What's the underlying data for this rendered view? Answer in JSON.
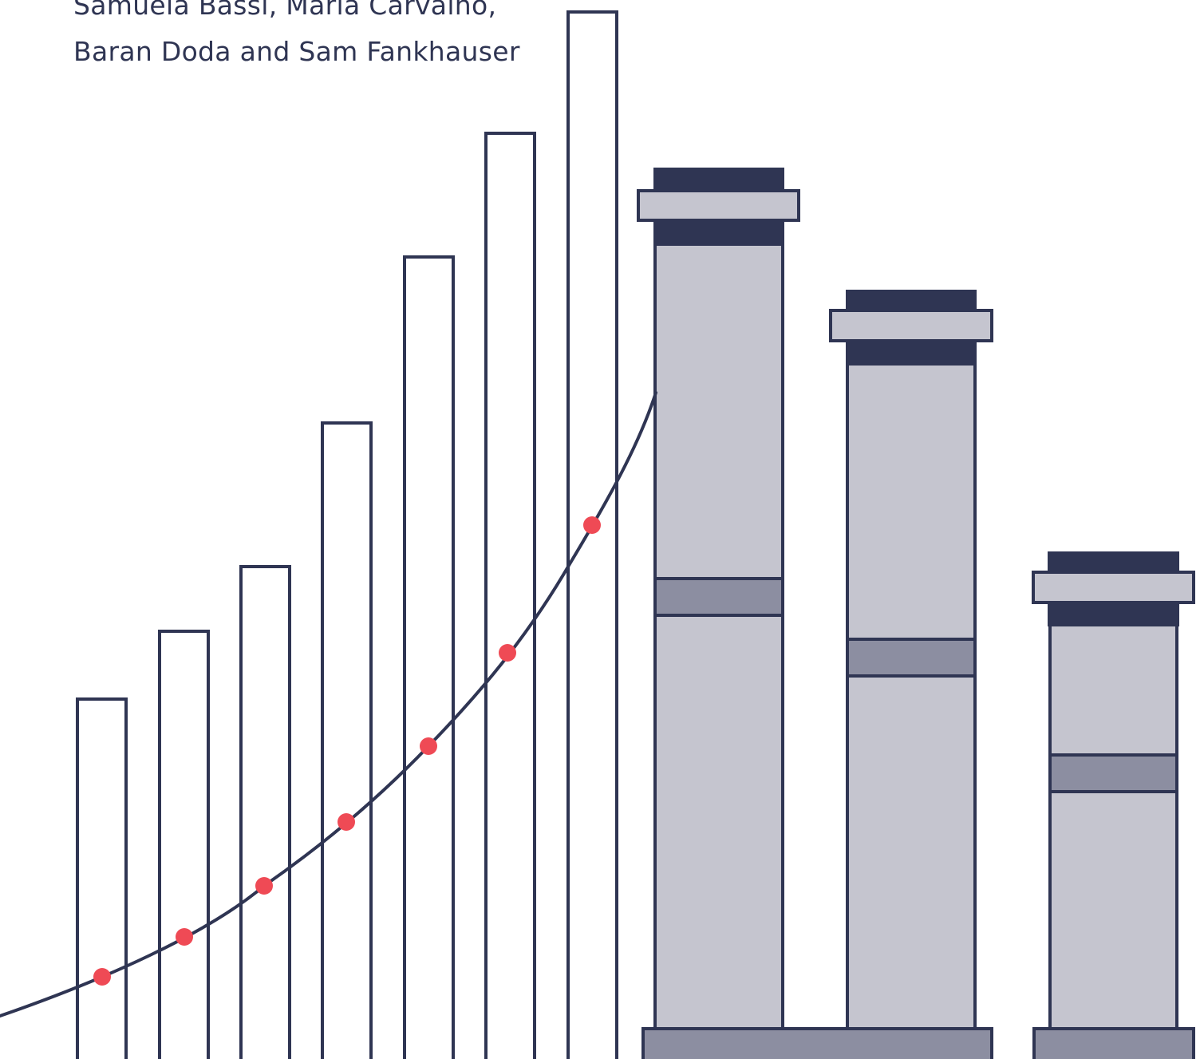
{
  "authors": {
    "line1": "Samuela Bassi, Maria Carvalho,",
    "line2": "Baran Doda and Sam Fankhauser"
  },
  "colors": {
    "outline": "#2f3553",
    "chimney_light": "#c5c5cf",
    "chimney_mid": "#8c8ea1",
    "dot": "#ef4a55",
    "background": "#ffffff"
  }
}
